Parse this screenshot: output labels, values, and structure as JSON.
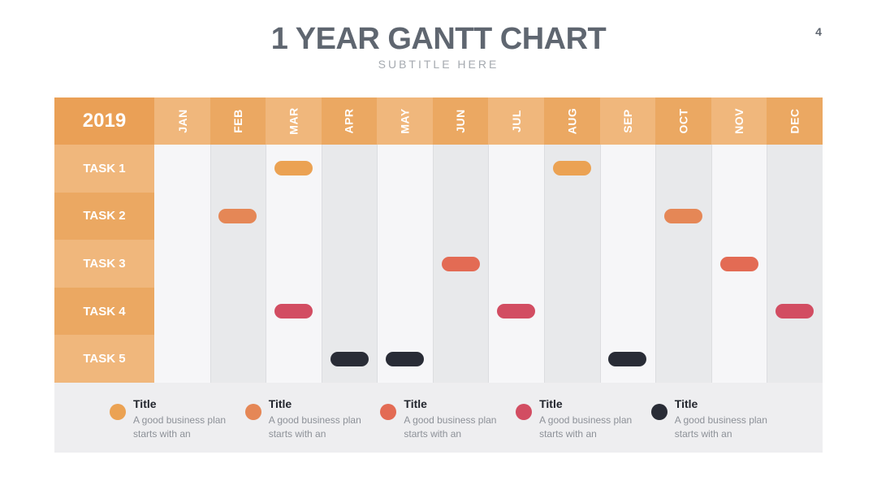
{
  "slide": {
    "title": "1 YEAR GANTT CHART",
    "subtitle": "SUBTITLE HERE",
    "page_number": "4"
  },
  "gantt": {
    "year": "2019",
    "months": [
      "JAN",
      "FEB",
      "MAR",
      "APR",
      "MAY",
      "JUN",
      "JUL",
      "AUG",
      "SEP",
      "OCT",
      "NOV",
      "DEC"
    ],
    "tasks": [
      {
        "label": "TASK 1",
        "color": "#eba253",
        "months": [
          3,
          8
        ]
      },
      {
        "label": "TASK 2",
        "color": "#e58756",
        "months": [
          2,
          10
        ]
      },
      {
        "label": "TASK 3",
        "color": "#e36b54",
        "months": [
          6,
          11
        ]
      },
      {
        "label": "TASK 4",
        "color": "#d24d62",
        "months": [
          3,
          7,
          12
        ]
      },
      {
        "label": "TASK 5",
        "color": "#292c36",
        "months": [
          4,
          5,
          9
        ]
      }
    ],
    "colors": {
      "year_header": "#eaa056",
      "header_light": "#f0b77c",
      "header_dark": "#eba862",
      "label_light": "#f0b77c",
      "label_dark": "#eba862",
      "column_light": "#f6f6f8",
      "column_dark": "#e8e9eb"
    }
  },
  "legend": [
    {
      "title": "Title",
      "description": "A good business plan starts with an",
      "color": "#eba253"
    },
    {
      "title": "Title",
      "description": "A good business plan starts with an",
      "color": "#e58756"
    },
    {
      "title": "Title",
      "description": "A good business plan starts with an",
      "color": "#e36b54"
    },
    {
      "title": "Title",
      "description": "A good business plan starts with an",
      "color": "#d24d62"
    },
    {
      "title": "Title",
      "description": "A good business plan starts with an",
      "color": "#292c36"
    }
  ]
}
